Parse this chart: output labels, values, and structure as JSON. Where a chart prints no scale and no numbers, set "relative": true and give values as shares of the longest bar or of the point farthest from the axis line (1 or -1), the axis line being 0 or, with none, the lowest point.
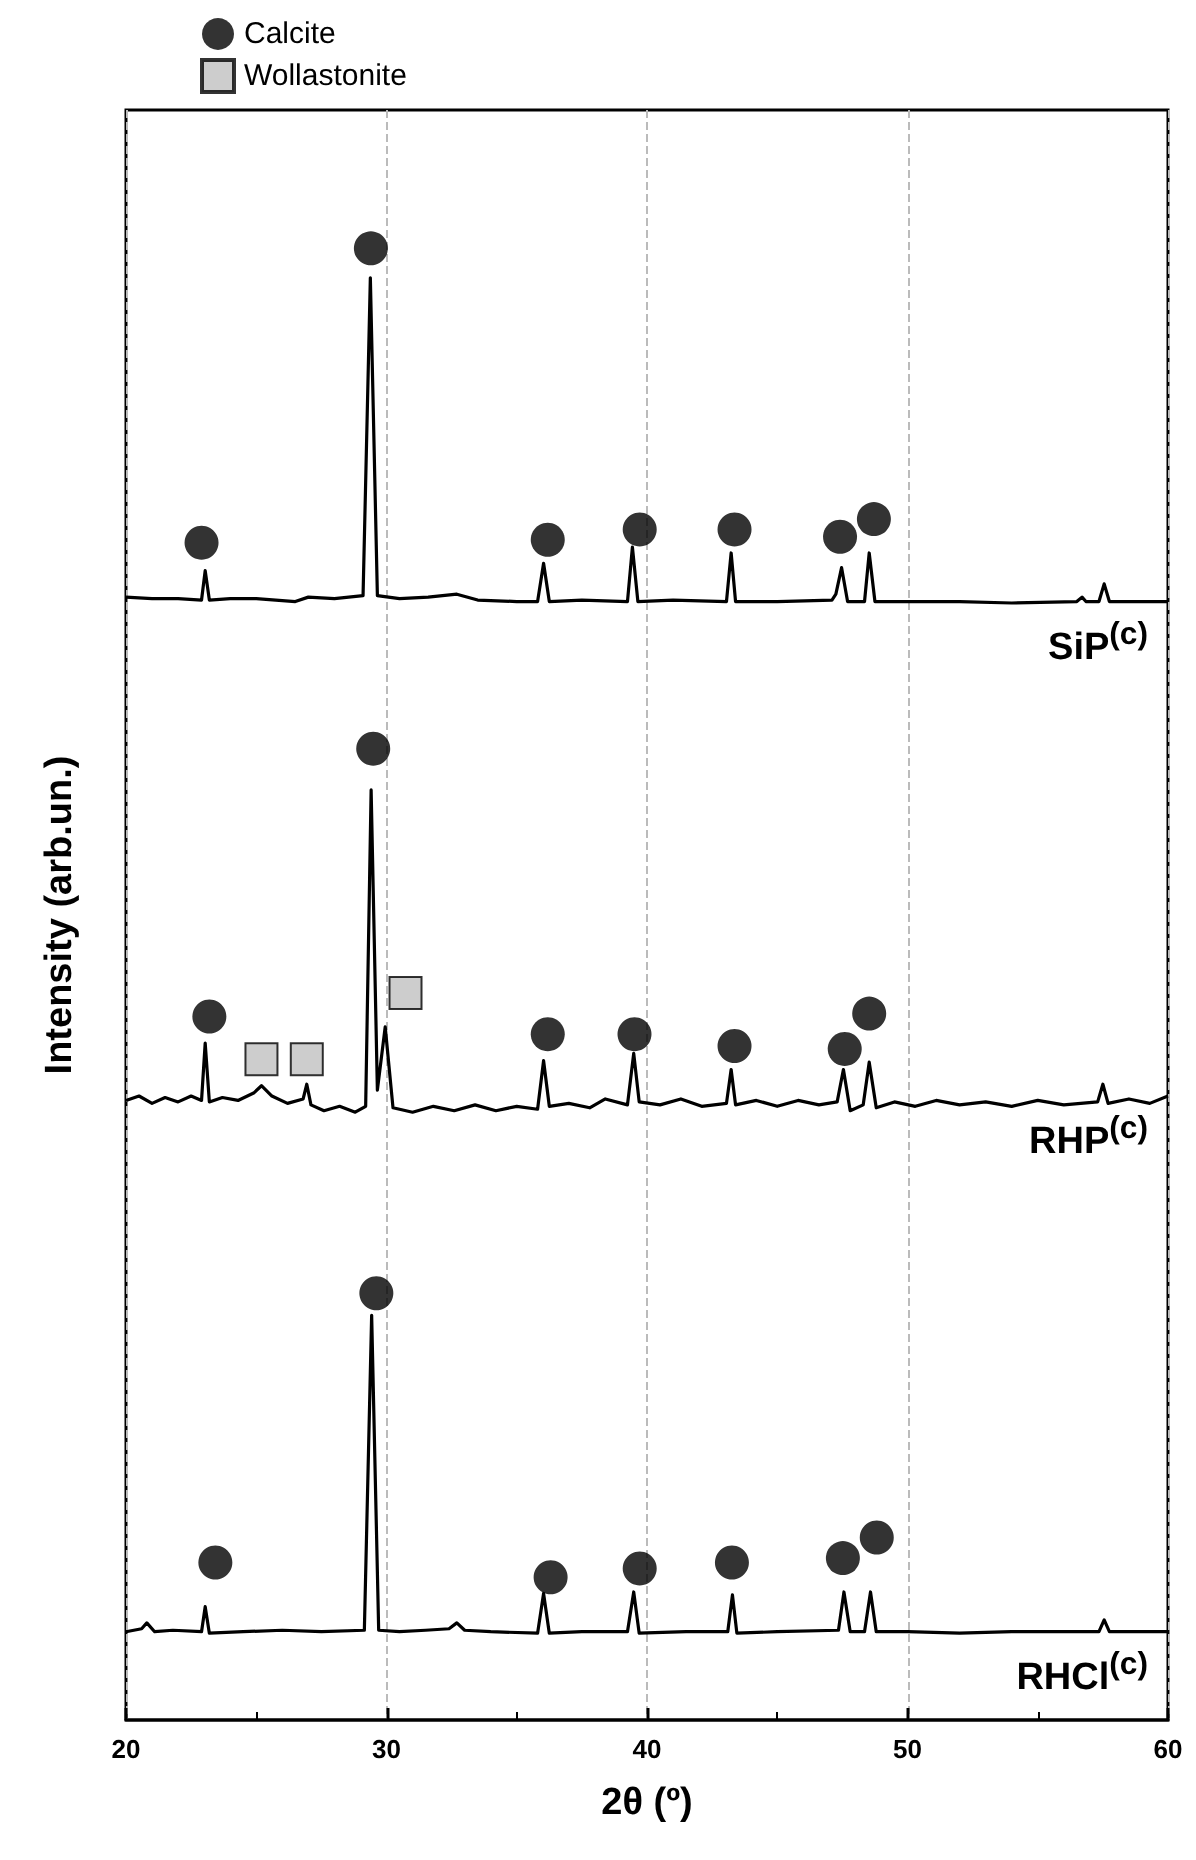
{
  "chart_data": {
    "type": "line",
    "xlabel": "2θ (º)",
    "ylabel": "Intensity (arb.un.)",
    "relative": true,
    "xlim": [
      20,
      60
    ],
    "xticks": [
      20,
      30,
      40,
      50,
      60
    ],
    "grid": "x",
    "legend": "top left",
    "tick_labels": "x",
    "series": [
      {
        "name": "SiP$^{(c)}$",
        "color": "#000000",
        "x": [
          20,
          21,
          22,
          22.9,
          23.04,
          23.2,
          24,
          25,
          26.5,
          27,
          28,
          29.1,
          29.38,
          29.65,
          30.5,
          31.6,
          32.7,
          33.5,
          35,
          35.8,
          36.03,
          36.25,
          37.5,
          39.25,
          39.44,
          39.65,
          41,
          43.05,
          43.23,
          43.4,
          45,
          47.1,
          47.25,
          47.47,
          47.7,
          48.35,
          48.53,
          48.75,
          50,
          52,
          54,
          56.5,
          56.7,
          56.85,
          57.35,
          57.55,
          57.75,
          59,
          60
        ],
        "values": [
          0.763,
          0.762,
          0.762,
          0.761,
          0.781,
          0.761,
          0.762,
          0.762,
          0.76,
          0.763,
          0.762,
          0.764,
          0.98,
          0.764,
          0.762,
          0.763,
          0.765,
          0.761,
          0.76,
          0.76,
          0.786,
          0.76,
          0.761,
          0.76,
          0.797,
          0.76,
          0.761,
          0.76,
          0.793,
          0.76,
          0.76,
          0.761,
          0.765,
          0.783,
          0.76,
          0.76,
          0.793,
          0.76,
          0.76,
          0.76,
          0.759,
          0.76,
          0.763,
          0.76,
          0.76,
          0.772,
          0.76,
          0.76,
          0.76
        ]
      },
      {
        "name": "RHP$^{(c)}$",
        "color": "#000000",
        "x": [
          20,
          20.5,
          21,
          21.5,
          22,
          22.5,
          22.9,
          23.04,
          23.2,
          23.7,
          24.3,
          24.9,
          25.2,
          25.6,
          26.2,
          26.8,
          26.94,
          27.1,
          27.6,
          28.2,
          28.8,
          29.2,
          29.41,
          29.65,
          29.95,
          30.25,
          31,
          31.8,
          32.6,
          33.4,
          34.2,
          35,
          35.8,
          36.03,
          36.25,
          37,
          37.8,
          38.4,
          39.25,
          39.49,
          39.7,
          40.5,
          41.3,
          42.1,
          43.05,
          43.23,
          43.4,
          44.2,
          45,
          45.8,
          46.6,
          47.3,
          47.54,
          47.8,
          48.3,
          48.53,
          48.8,
          49.5,
          50.3,
          51.1,
          52,
          53,
          54,
          55,
          56,
          57.3,
          57.5,
          57.7,
          58.5,
          59.3,
          60
        ],
        "values": [
          0.421,
          0.424,
          0.419,
          0.423,
          0.42,
          0.424,
          0.421,
          0.46,
          0.42,
          0.423,
          0.421,
          0.426,
          0.431,
          0.424,
          0.419,
          0.422,
          0.432,
          0.418,
          0.414,
          0.417,
          0.413,
          0.417,
          0.632,
          0.428,
          0.471,
          0.416,
          0.413,
          0.417,
          0.414,
          0.418,
          0.414,
          0.417,
          0.415,
          0.448,
          0.417,
          0.419,
          0.416,
          0.422,
          0.418,
          0.453,
          0.42,
          0.418,
          0.422,
          0.417,
          0.419,
          0.442,
          0.418,
          0.421,
          0.417,
          0.421,
          0.418,
          0.42,
          0.442,
          0.414,
          0.418,
          0.447,
          0.416,
          0.42,
          0.417,
          0.421,
          0.418,
          0.42,
          0.417,
          0.421,
          0.418,
          0.42,
          0.432,
          0.419,
          0.422,
          0.419,
          0.424
        ]
      },
      {
        "name": "RHCl$^{(c)}$",
        "color": "#000000",
        "x": [
          20,
          20.6,
          20.8,
          21.1,
          21.8,
          22.9,
          23.04,
          23.2,
          24.5,
          26,
          27.5,
          29.15,
          29.43,
          29.7,
          30.5,
          31.5,
          32.4,
          32.7,
          33,
          34,
          35.8,
          36.03,
          36.25,
          37.5,
          39.25,
          39.49,
          39.7,
          41.5,
          43.1,
          43.28,
          43.45,
          45,
          47.35,
          47.56,
          47.8,
          48.35,
          48.58,
          48.8,
          50,
          52,
          54,
          56.5,
          57.35,
          57.55,
          57.75,
          59,
          60
        ],
        "values": [
          0.06,
          0.062,
          0.066,
          0.06,
          0.061,
          0.06,
          0.077,
          0.059,
          0.06,
          0.061,
          0.06,
          0.061,
          0.275,
          0.061,
          0.06,
          0.061,
          0.062,
          0.066,
          0.061,
          0.06,
          0.059,
          0.086,
          0.059,
          0.06,
          0.06,
          0.087,
          0.059,
          0.06,
          0.06,
          0.085,
          0.059,
          0.06,
          0.061,
          0.087,
          0.06,
          0.06,
          0.087,
          0.06,
          0.06,
          0.059,
          0.06,
          0.06,
          0.06,
          0.068,
          0.06,
          0.06,
          0.06
        ]
      },
      {
        "name": "Calcite",
        "type": "scatter",
        "marker": "circle",
        "color": "#000000",
        "x": [
          22.9,
          29.4,
          36.19,
          39.72,
          43.36,
          47.41,
          48.71,
          23.2,
          29.49,
          36.19,
          39.52,
          43.36,
          47.59,
          48.53,
          23.43,
          29.61,
          36.3,
          39.72,
          43.26,
          47.52,
          48.82
        ],
        "values": [
          0.8,
          1.0,
          0.802,
          0.809,
          0.809,
          0.804,
          0.816,
          0.478,
          0.66,
          0.466,
          0.466,
          0.458,
          0.456,
          0.48,
          0.107,
          0.29,
          0.097,
          0.103,
          0.107,
          0.11,
          0.124
        ]
      },
      {
        "name": "Wollastonite",
        "type": "scatter",
        "marker": "square",
        "color": "#c0c0c0",
        "x": [
          25.2,
          26.94,
          30.73
        ],
        "values": [
          0.449,
          0.449,
          0.494
        ]
      }
    ]
  }
}
